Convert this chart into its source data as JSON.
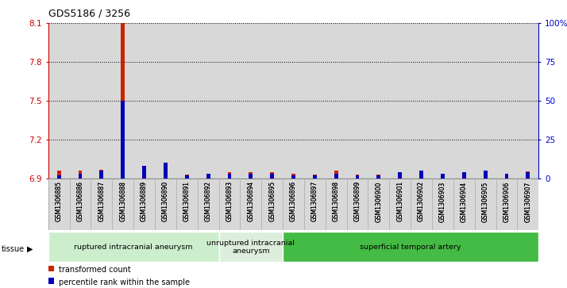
{
  "title": "GDS5186 / 3256",
  "samples": [
    "GSM1306885",
    "GSM1306886",
    "GSM1306887",
    "GSM1306888",
    "GSM1306889",
    "GSM1306890",
    "GSM1306891",
    "GSM1306892",
    "GSM1306893",
    "GSM1306894",
    "GSM1306895",
    "GSM1306896",
    "GSM1306897",
    "GSM1306898",
    "GSM1306899",
    "GSM1306900",
    "GSM1306901",
    "GSM1306902",
    "GSM1306903",
    "GSM1306904",
    "GSM1306905",
    "GSM1306906",
    "GSM1306907"
  ],
  "red_values": [
    6.96,
    6.96,
    6.97,
    8.1,
    6.97,
    6.985,
    6.93,
    6.94,
    6.95,
    6.95,
    6.95,
    6.94,
    6.93,
    6.96,
    6.93,
    6.93,
    6.94,
    6.955,
    6.94,
    6.95,
    6.955,
    6.94,
    6.955
  ],
  "blue_values": [
    2,
    3,
    5,
    50,
    8,
    10,
    2,
    3,
    3,
    3,
    3,
    2,
    2,
    3,
    2,
    2,
    4,
    5,
    3,
    4,
    5,
    3,
    4
  ],
  "ylim_left": [
    6.9,
    8.1
  ],
  "ylim_right": [
    0,
    100
  ],
  "yticks_left": [
    6.9,
    7.2,
    7.5,
    7.8,
    8.1
  ],
  "yticks_right": [
    0,
    25,
    50,
    75,
    100
  ],
  "ytick_labels_right": [
    "0",
    "25",
    "50",
    "75",
    "100%"
  ],
  "group_bounds": [
    {
      "start": 0,
      "end": 8,
      "color": "#cceecc",
      "label": "ruptured intracranial aneurysm"
    },
    {
      "start": 8,
      "end": 11,
      "color": "#ddeedd",
      "label": "unruptured intracranial\naneurysm"
    },
    {
      "start": 11,
      "end": 23,
      "color": "#44bb44",
      "label": "superficial temporal artery"
    }
  ],
  "bar_bg_color": "#d8d8d8",
  "plot_bg_color": "#ffffff",
  "left_axis_color": "#cc0000",
  "right_axis_color": "#0000cc",
  "red_bar_color": "#cc2200",
  "blue_bar_color": "#0000bb"
}
